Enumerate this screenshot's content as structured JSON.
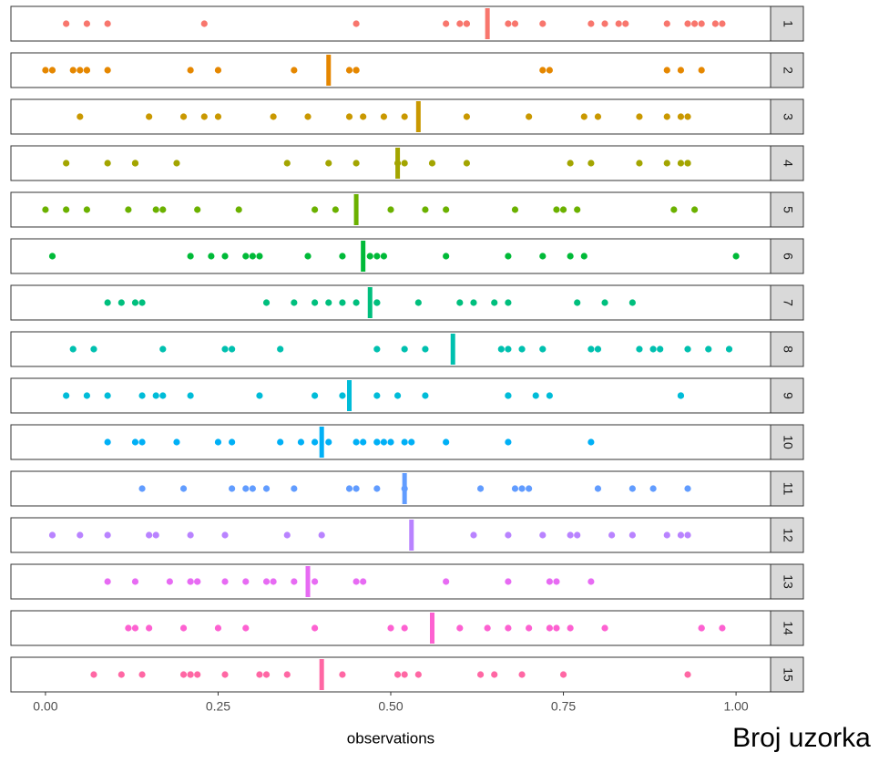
{
  "chart_data": {
    "type": "strip",
    "xlabel": "observations",
    "annotation": "Broj uzorka",
    "xlim": [
      -0.05,
      1.05
    ],
    "xticks": [
      {
        "value": 0,
        "label": "0.00"
      },
      {
        "value": 0.25,
        "label": "0.25"
      },
      {
        "value": 0.5,
        "label": "0.50"
      },
      {
        "value": 0.75,
        "label": "0.75"
      },
      {
        "value": 1,
        "label": "1.00"
      }
    ],
    "panels": [
      {
        "name": "1",
        "color": "#F8766D",
        "mean": 0.64,
        "values": [
          0.03,
          0.06,
          0.09,
          0.23,
          0.45,
          0.58,
          0.6,
          0.61,
          0.61,
          0.67,
          0.68,
          0.72,
          0.79,
          0.81,
          0.83,
          0.84,
          0.9,
          0.93,
          0.94,
          0.95,
          0.97,
          0.98
        ]
      },
      {
        "name": "2",
        "color": "#E58700",
        "mean": 0.41,
        "values": [
          0.0,
          0.01,
          0.04,
          0.05,
          0.06,
          0.06,
          0.09,
          0.21,
          0.25,
          0.36,
          0.44,
          0.45,
          0.45,
          0.72,
          0.73,
          0.9,
          0.92,
          0.95
        ]
      },
      {
        "name": "3",
        "color": "#C99800",
        "mean": 0.54,
        "values": [
          0.05,
          0.15,
          0.2,
          0.23,
          0.25,
          0.33,
          0.38,
          0.44,
          0.46,
          0.49,
          0.52,
          0.61,
          0.7,
          0.78,
          0.8,
          0.86,
          0.9,
          0.92,
          0.93
        ]
      },
      {
        "name": "4",
        "color": "#A3A500",
        "mean": 0.51,
        "values": [
          0.03,
          0.09,
          0.13,
          0.13,
          0.19,
          0.35,
          0.41,
          0.45,
          0.51,
          0.52,
          0.56,
          0.61,
          0.76,
          0.79,
          0.86,
          0.9,
          0.92,
          0.93,
          0.93
        ]
      },
      {
        "name": "5",
        "color": "#6BB100",
        "mean": 0.45,
        "values": [
          0.0,
          0.03,
          0.06,
          0.12,
          0.16,
          0.17,
          0.22,
          0.28,
          0.39,
          0.42,
          0.5,
          0.55,
          0.58,
          0.68,
          0.74,
          0.75,
          0.77,
          0.91,
          0.94
        ]
      },
      {
        "name": "6",
        "color": "#00BA38",
        "mean": 0.46,
        "values": [
          0.01,
          0.21,
          0.24,
          0.26,
          0.29,
          0.3,
          0.31,
          0.38,
          0.43,
          0.47,
          0.48,
          0.49,
          0.58,
          0.67,
          0.72,
          0.76,
          0.78,
          1.0
        ]
      },
      {
        "name": "7",
        "color": "#00BF7D",
        "mean": 0.47,
        "values": [
          0.09,
          0.11,
          0.13,
          0.14,
          0.32,
          0.36,
          0.39,
          0.41,
          0.43,
          0.45,
          0.48,
          0.48,
          0.54,
          0.6,
          0.62,
          0.65,
          0.67,
          0.77,
          0.81,
          0.85
        ]
      },
      {
        "name": "8",
        "color": "#00C0AF",
        "mean": 0.59,
        "values": [
          0.04,
          0.07,
          0.17,
          0.26,
          0.27,
          0.34,
          0.48,
          0.52,
          0.55,
          0.66,
          0.67,
          0.69,
          0.72,
          0.79,
          0.8,
          0.86,
          0.88,
          0.89,
          0.93,
          0.96,
          0.99
        ]
      },
      {
        "name": "9",
        "color": "#00BCD8",
        "mean": 0.44,
        "values": [
          0.03,
          0.06,
          0.09,
          0.14,
          0.16,
          0.17,
          0.21,
          0.31,
          0.39,
          0.43,
          0.48,
          0.51,
          0.55,
          0.67,
          0.67,
          0.71,
          0.73,
          0.92,
          0.92
        ]
      },
      {
        "name": "10",
        "color": "#00B0F6",
        "mean": 0.4,
        "values": [
          0.09,
          0.13,
          0.14,
          0.19,
          0.25,
          0.27,
          0.34,
          0.37,
          0.39,
          0.41,
          0.45,
          0.46,
          0.48,
          0.48,
          0.49,
          0.5,
          0.52,
          0.53,
          0.58,
          0.67,
          0.79
        ]
      },
      {
        "name": "11",
        "color": "#619CFF",
        "mean": 0.52,
        "values": [
          0.14,
          0.2,
          0.27,
          0.29,
          0.3,
          0.32,
          0.36,
          0.44,
          0.45,
          0.48,
          0.52,
          0.63,
          0.68,
          0.69,
          0.7,
          0.8,
          0.85,
          0.88,
          0.93
        ]
      },
      {
        "name": "12",
        "color": "#B983FF",
        "mean": 0.53,
        "values": [
          0.01,
          0.05,
          0.09,
          0.15,
          0.16,
          0.21,
          0.26,
          0.35,
          0.4,
          0.62,
          0.67,
          0.72,
          0.76,
          0.77,
          0.82,
          0.85,
          0.9,
          0.92,
          0.93
        ]
      },
      {
        "name": "13",
        "color": "#E76BF3",
        "mean": 0.38,
        "values": [
          0.09,
          0.13,
          0.18,
          0.21,
          0.21,
          0.22,
          0.22,
          0.26,
          0.29,
          0.32,
          0.33,
          0.36,
          0.39,
          0.45,
          0.46,
          0.58,
          0.67,
          0.73,
          0.74,
          0.79
        ]
      },
      {
        "name": "14",
        "color": "#FD61D1",
        "mean": 0.56,
        "values": [
          0.12,
          0.13,
          0.15,
          0.2,
          0.25,
          0.29,
          0.39,
          0.5,
          0.52,
          0.6,
          0.64,
          0.67,
          0.7,
          0.73,
          0.74,
          0.76,
          0.81,
          0.95,
          0.95,
          0.98
        ]
      },
      {
        "name": "15",
        "color": "#FF67A4",
        "mean": 0.4,
        "values": [
          0.07,
          0.11,
          0.14,
          0.2,
          0.21,
          0.21,
          0.22,
          0.26,
          0.31,
          0.32,
          0.35,
          0.43,
          0.51,
          0.52,
          0.54,
          0.63,
          0.65,
          0.69,
          0.75,
          0.93
        ]
      }
    ]
  }
}
